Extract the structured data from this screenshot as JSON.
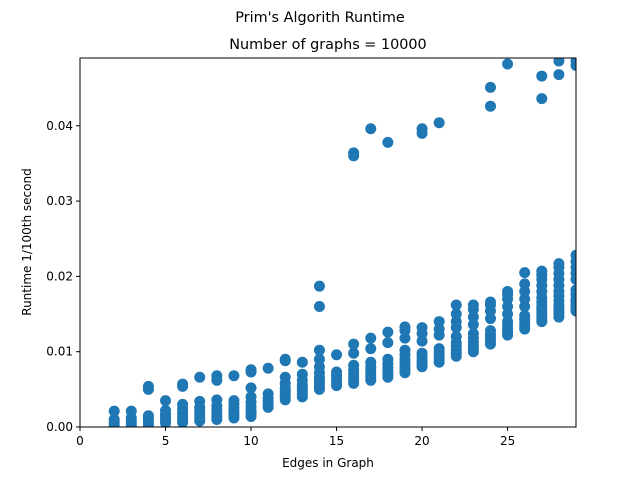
{
  "figure": {
    "suptitle": "Prim's Algorith Runtime"
  },
  "chart_data": {
    "type": "scatter",
    "title": "Number of graphs = 10000",
    "xlabel": "Edges in Graph",
    "ylabel": "Runtime 1/100th second",
    "xlim": [
      0,
      29
    ],
    "ylim": [
      0,
      0.049
    ],
    "xticks": [
      0,
      5,
      10,
      15,
      20,
      25
    ],
    "xtick_labels": [
      "0",
      "5",
      "10",
      "15",
      "20",
      "25"
    ],
    "yticks": [
      0.0,
      0.01,
      0.02,
      0.03,
      0.04
    ],
    "ytick_labels": [
      "0.00",
      "0.01",
      "0.02",
      "0.03",
      "0.04"
    ],
    "grid": false,
    "point_color": "#1f77b4",
    "series": [
      {
        "points": [
          [
            2,
            0.0002
          ],
          [
            2,
            0.0006
          ],
          [
            2,
            0.001
          ],
          [
            2,
            0.0021
          ],
          [
            3,
            0.0002
          ],
          [
            3,
            0.0005
          ],
          [
            3,
            0.0008
          ],
          [
            3,
            0.0012
          ],
          [
            3,
            0.0021
          ],
          [
            4,
            0.0003
          ],
          [
            4,
            0.0007
          ],
          [
            4,
            0.0011
          ],
          [
            4,
            0.0015
          ],
          [
            4,
            0.005
          ],
          [
            4,
            0.0054
          ],
          [
            5,
            0.0005
          ],
          [
            5,
            0.0009
          ],
          [
            5,
            0.0013
          ],
          [
            5,
            0.0017
          ],
          [
            5,
            0.0022
          ],
          [
            5,
            0.0035
          ],
          [
            6,
            0.0006
          ],
          [
            6,
            0.001
          ],
          [
            6,
            0.0014
          ],
          [
            6,
            0.0019
          ],
          [
            6,
            0.0024
          ],
          [
            6,
            0.003
          ],
          [
            6,
            0.0054
          ],
          [
            6,
            0.0057
          ],
          [
            7,
            0.0008
          ],
          [
            7,
            0.0012
          ],
          [
            7,
            0.0016
          ],
          [
            7,
            0.0021
          ],
          [
            7,
            0.0026
          ],
          [
            7,
            0.0034
          ],
          [
            7,
            0.0066
          ],
          [
            8,
            0.001
          ],
          [
            8,
            0.0014
          ],
          [
            8,
            0.0018
          ],
          [
            8,
            0.0023
          ],
          [
            8,
            0.0028
          ],
          [
            8,
            0.0036
          ],
          [
            8,
            0.0062
          ],
          [
            8,
            0.0068
          ],
          [
            9,
            0.0012
          ],
          [
            9,
            0.0016
          ],
          [
            9,
            0.002
          ],
          [
            9,
            0.0025
          ],
          [
            9,
            0.003
          ],
          [
            9,
            0.0035
          ],
          [
            9,
            0.0068
          ],
          [
            10,
            0.0014
          ],
          [
            10,
            0.0018
          ],
          [
            10,
            0.0022
          ],
          [
            10,
            0.0027
          ],
          [
            10,
            0.0033
          ],
          [
            10,
            0.004
          ],
          [
            10,
            0.0052
          ],
          [
            10,
            0.0073
          ],
          [
            10,
            0.0076
          ],
          [
            11,
            0.0026
          ],
          [
            11,
            0.003
          ],
          [
            11,
            0.0034
          ],
          [
            11,
            0.0038
          ],
          [
            11,
            0.0044
          ],
          [
            11,
            0.0078
          ],
          [
            12,
            0.0036
          ],
          [
            12,
            0.004
          ],
          [
            12,
            0.0044
          ],
          [
            12,
            0.0048
          ],
          [
            12,
            0.0052
          ],
          [
            12,
            0.0058
          ],
          [
            12,
            0.0066
          ],
          [
            12,
            0.0088
          ],
          [
            12,
            0.009
          ],
          [
            13,
            0.004
          ],
          [
            13,
            0.0044
          ],
          [
            13,
            0.0048
          ],
          [
            13,
            0.0052
          ],
          [
            13,
            0.0056
          ],
          [
            13,
            0.0062
          ],
          [
            13,
            0.007
          ],
          [
            13,
            0.0086
          ],
          [
            14,
            0.005
          ],
          [
            14,
            0.0054
          ],
          [
            14,
            0.0058
          ],
          [
            14,
            0.0062
          ],
          [
            14,
            0.0066
          ],
          [
            14,
            0.0072
          ],
          [
            14,
            0.008
          ],
          [
            14,
            0.009
          ],
          [
            14,
            0.0102
          ],
          [
            14,
            0.016
          ],
          [
            14,
            0.0187
          ],
          [
            15,
            0.0055
          ],
          [
            15,
            0.0059
          ],
          [
            15,
            0.0063
          ],
          [
            15,
            0.0068
          ],
          [
            15,
            0.0073
          ],
          [
            15,
            0.0096
          ],
          [
            16,
            0.0058
          ],
          [
            16,
            0.0062
          ],
          [
            16,
            0.0066
          ],
          [
            16,
            0.0071
          ],
          [
            16,
            0.0076
          ],
          [
            16,
            0.0082
          ],
          [
            16,
            0.0098
          ],
          [
            16,
            0.011
          ],
          [
            16,
            0.036
          ],
          [
            16,
            0.0364
          ],
          [
            17,
            0.0062
          ],
          [
            17,
            0.0066
          ],
          [
            17,
            0.007
          ],
          [
            17,
            0.0075
          ],
          [
            17,
            0.008
          ],
          [
            17,
            0.0086
          ],
          [
            17,
            0.0104
          ],
          [
            17,
            0.0118
          ],
          [
            17,
            0.0396
          ],
          [
            18,
            0.0066
          ],
          [
            18,
            0.007
          ],
          [
            18,
            0.0074
          ],
          [
            18,
            0.0079
          ],
          [
            18,
            0.0084
          ],
          [
            18,
            0.009
          ],
          [
            18,
            0.0112
          ],
          [
            18,
            0.0126
          ],
          [
            18,
            0.0378
          ],
          [
            19,
            0.0072
          ],
          [
            19,
            0.0076
          ],
          [
            19,
            0.008
          ],
          [
            19,
            0.0085
          ],
          [
            19,
            0.009
          ],
          [
            19,
            0.0096
          ],
          [
            19,
            0.0102
          ],
          [
            19,
            0.0118
          ],
          [
            19,
            0.0128
          ],
          [
            19,
            0.0133
          ],
          [
            20,
            0.008
          ],
          [
            20,
            0.0084
          ],
          [
            20,
            0.0088
          ],
          [
            20,
            0.0093
          ],
          [
            20,
            0.0098
          ],
          [
            20,
            0.0114
          ],
          [
            20,
            0.0124
          ],
          [
            20,
            0.0132
          ],
          [
            20,
            0.039
          ],
          [
            20,
            0.0396
          ],
          [
            21,
            0.0086
          ],
          [
            21,
            0.009
          ],
          [
            21,
            0.0094
          ],
          [
            21,
            0.0099
          ],
          [
            21,
            0.0104
          ],
          [
            21,
            0.0122
          ],
          [
            21,
            0.013
          ],
          [
            21,
            0.014
          ],
          [
            21,
            0.0404
          ],
          [
            22,
            0.0094
          ],
          [
            22,
            0.0098
          ],
          [
            22,
            0.0102
          ],
          [
            22,
            0.0107
          ],
          [
            22,
            0.0112
          ],
          [
            22,
            0.012
          ],
          [
            22,
            0.0132
          ],
          [
            22,
            0.014
          ],
          [
            22,
            0.015
          ],
          [
            22,
            0.0162
          ],
          [
            23,
            0.01
          ],
          [
            23,
            0.0104
          ],
          [
            23,
            0.0108
          ],
          [
            23,
            0.0113
          ],
          [
            23,
            0.0118
          ],
          [
            23,
            0.0124
          ],
          [
            23,
            0.0136
          ],
          [
            23,
            0.0146
          ],
          [
            23,
            0.0156
          ],
          [
            23,
            0.0162
          ],
          [
            24,
            0.011
          ],
          [
            24,
            0.0114
          ],
          [
            24,
            0.0118
          ],
          [
            24,
            0.0123
          ],
          [
            24,
            0.0128
          ],
          [
            24,
            0.0144
          ],
          [
            24,
            0.0154
          ],
          [
            24,
            0.0162
          ],
          [
            24,
            0.0166
          ],
          [
            24,
            0.0426
          ],
          [
            24,
            0.0451
          ],
          [
            25,
            0.0122
          ],
          [
            25,
            0.0126
          ],
          [
            25,
            0.013
          ],
          [
            25,
            0.0135
          ],
          [
            25,
            0.014
          ],
          [
            25,
            0.015
          ],
          [
            25,
            0.016
          ],
          [
            25,
            0.017
          ],
          [
            25,
            0.0176
          ],
          [
            25,
            0.018
          ],
          [
            25,
            0.0482
          ],
          [
            26,
            0.013
          ],
          [
            26,
            0.0134
          ],
          [
            26,
            0.0138
          ],
          [
            26,
            0.0143
          ],
          [
            26,
            0.0148
          ],
          [
            26,
            0.016
          ],
          [
            26,
            0.017
          ],
          [
            26,
            0.018
          ],
          [
            26,
            0.019
          ],
          [
            26,
            0.0205
          ],
          [
            27,
            0.014
          ],
          [
            27,
            0.0144
          ],
          [
            27,
            0.0148
          ],
          [
            27,
            0.0152
          ],
          [
            27,
            0.0156
          ],
          [
            27,
            0.016
          ],
          [
            27,
            0.0166
          ],
          [
            27,
            0.0172
          ],
          [
            27,
            0.018
          ],
          [
            27,
            0.0188
          ],
          [
            27,
            0.0196
          ],
          [
            27,
            0.0202
          ],
          [
            27,
            0.0207
          ],
          [
            27,
            0.0436
          ],
          [
            27,
            0.0466
          ],
          [
            28,
            0.0146
          ],
          [
            28,
            0.015
          ],
          [
            28,
            0.0154
          ],
          [
            28,
            0.0158
          ],
          [
            28,
            0.0162
          ],
          [
            28,
            0.0168
          ],
          [
            28,
            0.0174
          ],
          [
            28,
            0.018
          ],
          [
            28,
            0.0188
          ],
          [
            28,
            0.0196
          ],
          [
            28,
            0.0204
          ],
          [
            28,
            0.0212
          ],
          [
            28,
            0.0217
          ],
          [
            28,
            0.0468
          ],
          [
            28,
            0.0486
          ],
          [
            29,
            0.0154
          ],
          [
            29,
            0.0158
          ],
          [
            29,
            0.0162
          ],
          [
            29,
            0.0166
          ],
          [
            29,
            0.017
          ],
          [
            29,
            0.0176
          ],
          [
            29,
            0.0182
          ],
          [
            29,
            0.0196
          ],
          [
            29,
            0.0204
          ],
          [
            29,
            0.0212
          ],
          [
            29,
            0.022
          ],
          [
            29,
            0.0228
          ],
          [
            29,
            0.048
          ],
          [
            29,
            0.0486
          ]
        ]
      }
    ]
  }
}
